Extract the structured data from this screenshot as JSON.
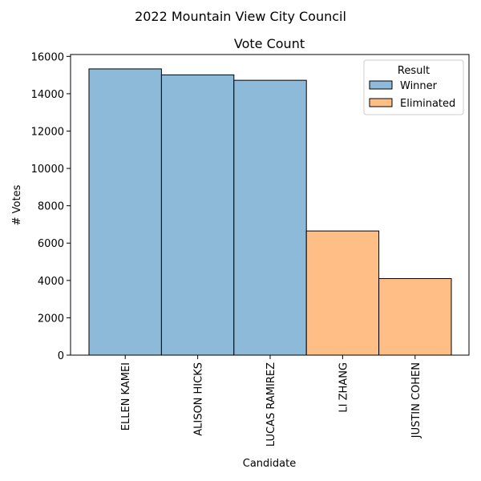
{
  "chart_data": {
    "type": "bar",
    "suptitle": "2022 Mountain View City Council",
    "title": "Vote Count",
    "xlabel": "Candidate",
    "ylabel": "# Votes",
    "categories": [
      "ELLEN KAMEI",
      "ALISON HICKS",
      "LUCAS RAMIREZ",
      "LI ZHANG",
      "JUSTIN COHEN"
    ],
    "values": [
      15330,
      15010,
      14720,
      6650,
      4100
    ],
    "result": [
      "Winner",
      "Winner",
      "Winner",
      "Eliminated",
      "Eliminated"
    ],
    "ylim": [
      0,
      16100
    ],
    "yticks": [
      0,
      2000,
      4000,
      6000,
      8000,
      10000,
      12000,
      14000,
      16000
    ],
    "grid": false,
    "legend": {
      "title": "Result",
      "placement": "top-right",
      "entries": [
        {
          "label": "Winner",
          "color": "#8ebad9"
        },
        {
          "label": "Eliminated",
          "color": "#ffbe86"
        }
      ]
    }
  }
}
